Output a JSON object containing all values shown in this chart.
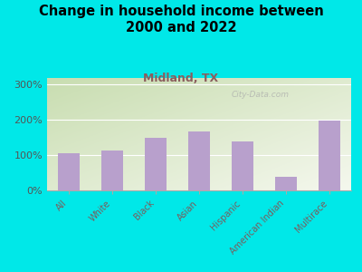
{
  "title": "Change in household income between\n2000 and 2022",
  "subtitle": "Midland, TX",
  "categories": [
    "All",
    "White",
    "Black",
    "Asian",
    "Hispanic",
    "American Indian",
    "Multirace"
  ],
  "values": [
    105,
    113,
    150,
    168,
    138,
    38,
    198
  ],
  "bar_color": "#b8a0cc",
  "background_outer": "#00e8e8",
  "background_inner_topleft": "#c8ddb0",
  "background_inner_bottomright": "#f0f5e0",
  "title_fontsize": 10.5,
  "subtitle_fontsize": 9,
  "subtitle_color": "#8B5E5E",
  "ylabel_ticks": [
    0,
    100,
    200,
    300
  ],
  "ylim": [
    0,
    320
  ],
  "watermark": "City-Data.com",
  "tick_label_color": "#7a5c5c",
  "ytick_color": "#555555"
}
